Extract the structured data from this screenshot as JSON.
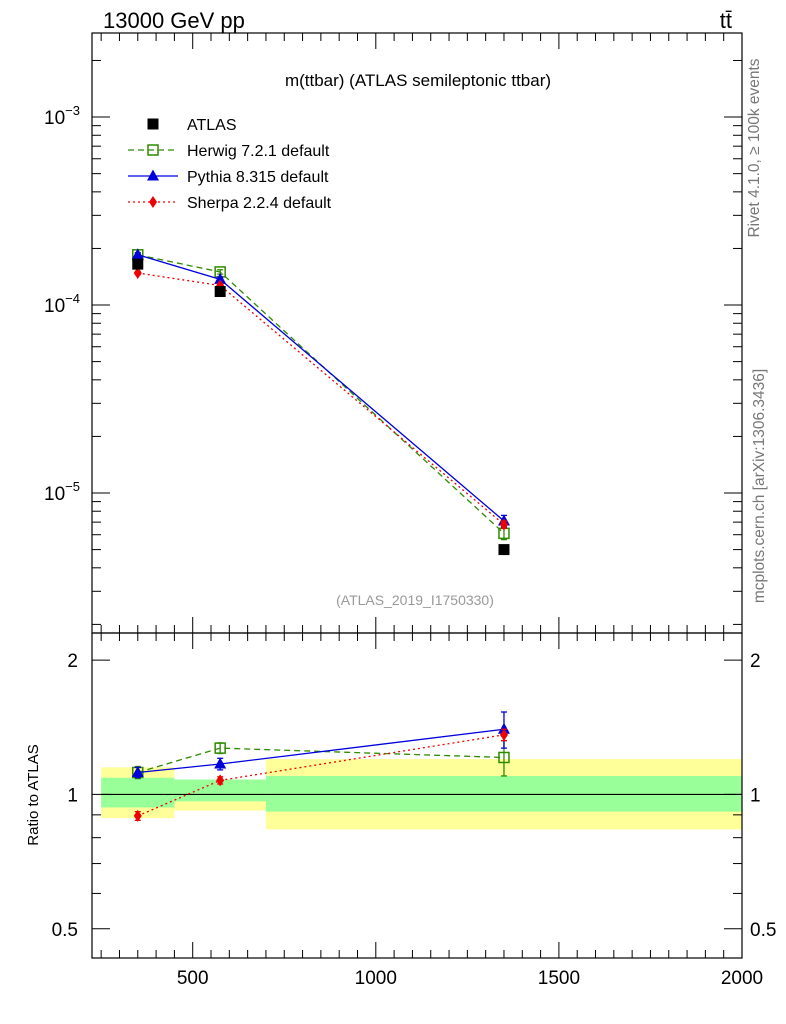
{
  "header": {
    "energy_label": "13000 GeV pp",
    "process_label": "tt̄"
  },
  "side_labels": {
    "rivet": "Rivet 4.1.0, ≥ 100k events",
    "url": "mcplots.cern.ch [arXiv:1306.3436]"
  },
  "chart_data": [
    {
      "type": "line",
      "y_scale": "log",
      "title": "m(ttbar) (ATLAS semileptonic ttbar)",
      "watermark": "(ATLAS_2019_I1750330)",
      "xlim": [
        225,
        2000
      ],
      "ylim": [
        1.8e-06,
        0.0028
      ],
      "yticks": [
        {
          "value": 0.001,
          "base": "10",
          "exp": "−3"
        },
        {
          "value": 0.0001,
          "base": "10",
          "exp": "−4"
        },
        {
          "value": 1e-05,
          "base": "10",
          "exp": "−5"
        }
      ],
      "series": [
        {
          "name": "ATLAS",
          "color": "#000000",
          "marker": "square-filled",
          "line": "none",
          "x": [
            350,
            575,
            1350
          ],
          "y": [
            0.000165,
            0.000118,
            5e-06
          ]
        },
        {
          "name": "Herwig 7.2.1 default",
          "color": "#2e8b00",
          "marker": "square-open",
          "line": "dashed",
          "x": [
            350,
            575,
            1350
          ],
          "y": [
            0.000185,
            0.00015,
            6.1e-06
          ],
          "err": [
            5e-06,
            4e-06,
            4.5e-07
          ]
        },
        {
          "name": "Pythia 8.315 default",
          "color": "#0000dd",
          "marker": "triangle",
          "line": "solid",
          "x": [
            350,
            575,
            1350
          ],
          "y": [
            0.000185,
            0.000137,
            7.1e-06
          ],
          "err": [
            4e-06,
            4e-06,
            5e-07
          ]
        },
        {
          "name": "Sherpa 2.2.4 default",
          "color": "#ee0000",
          "marker": "diamond",
          "line": "dotted",
          "x": [
            350,
            575,
            1350
          ],
          "y": [
            0.000148,
            0.000127,
            6.8e-06
          ],
          "err": [
            3e-06,
            3e-06,
            3e-07
          ]
        }
      ]
    },
    {
      "type": "line",
      "y_scale": "log",
      "ylabel": "Ratio to ATLAS",
      "xlim": [
        225,
        2000
      ],
      "ylim": [
        0.43,
        2.3
      ],
      "xticks": [
        500,
        1000,
        1500,
        2000
      ],
      "yticks": [
        0.5,
        1,
        2
      ],
      "ytick_labels": [
        "0.5",
        "1",
        "2"
      ],
      "bands": [
        {
          "x0": 250,
          "x1": 450,
          "stat_lo": 0.935,
          "stat_hi": 1.09,
          "tot_lo": 0.885,
          "tot_hi": 1.15
        },
        {
          "x0": 450,
          "x1": 700,
          "stat_lo": 0.965,
          "stat_hi": 1.08,
          "tot_lo": 0.92,
          "tot_hi": 1.065
        },
        {
          "x0": 700,
          "x1": 2000,
          "stat_lo": 0.915,
          "stat_hi": 1.1,
          "tot_lo": 0.835,
          "tot_hi": 1.2
        }
      ],
      "series": [
        {
          "name": "Herwig 7.2.1 default",
          "x": [
            350,
            575,
            1350
          ],
          "y": [
            1.12,
            1.27,
            1.21
          ],
          "err": [
            0.035,
            0.035,
            0.11
          ]
        },
        {
          "name": "Pythia 8.315 default",
          "x": [
            350,
            575,
            1350
          ],
          "y": [
            1.12,
            1.17,
            1.4
          ],
          "err": [
            0.03,
            0.035,
            0.13
          ]
        },
        {
          "name": "Sherpa 2.2.4 default",
          "x": [
            350,
            575,
            1350
          ],
          "y": [
            0.895,
            1.075,
            1.36
          ],
          "err": [
            0.02,
            0.02,
            0.04
          ]
        }
      ]
    }
  ]
}
